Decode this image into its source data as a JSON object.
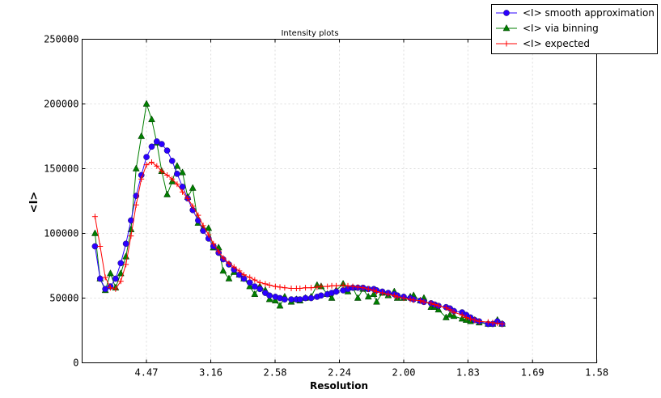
{
  "chart_data": {
    "type": "line",
    "title": "Intensity plots",
    "xlabel": "Resolution",
    "ylabel": "<I>",
    "x_scale": "reciprocal-square (1/d^2)",
    "x_ticks": [
      "4.47",
      "3.16",
      "2.58",
      "2.24",
      "2.00",
      "1.83",
      "1.69",
      "1.58"
    ],
    "x_tick_values": [
      4.472,
      3.162,
      2.582,
      2.236,
      2.0,
      1.826,
      1.69,
      1.581
    ],
    "ylim": [
      0,
      250000
    ],
    "y_ticks": [
      "0",
      "50000",
      "100000",
      "150000",
      "200000",
      "250000"
    ],
    "grid": true,
    "legend_position": "top-right, outside",
    "x": [
      10.0,
      8.45,
      7.45,
      6.74,
      6.2,
      5.77,
      5.42,
      5.13,
      4.88,
      4.66,
      4.47,
      4.3,
      4.15,
      4.02,
      3.89,
      3.78,
      3.68,
      3.58,
      3.49,
      3.41,
      3.33,
      3.26,
      3.19,
      3.13,
      3.07,
      3.02,
      2.96,
      2.91,
      2.86,
      2.82,
      2.77,
      2.73,
      2.69,
      2.65,
      2.62,
      2.58,
      2.55,
      2.52,
      2.48,
      2.45,
      2.43,
      2.4,
      2.37,
      2.34,
      2.32,
      2.29,
      2.27,
      2.25,
      2.22,
      2.2,
      2.18,
      2.16,
      2.14,
      2.12,
      2.1,
      2.09,
      2.07,
      2.05,
      2.03,
      2.02,
      2.0,
      1.98,
      1.97,
      1.95,
      1.94,
      1.92,
      1.91,
      1.9,
      1.88,
      1.87,
      1.86,
      1.84,
      1.83,
      1.82,
      1.81,
      1.8,
      1.78,
      1.77,
      1.76,
      1.75
    ],
    "series": [
      {
        "name": "<I> smooth approximation",
        "color": "#2b00ff",
        "marker": "circle",
        "values": [
          90000,
          65000,
          57000,
          59000,
          65000,
          77000,
          92000,
          110000,
          129000,
          145000,
          159000,
          167000,
          171000,
          169000,
          164000,
          156000,
          146000,
          136000,
          127000,
          118000,
          110000,
          102000,
          96000,
          90000,
          85000,
          80000,
          76000,
          72000,
          68000,
          65000,
          62000,
          59000,
          57000,
          54000,
          52000,
          51000,
          50000,
          49000,
          49000,
          49000,
          49000,
          50000,
          50000,
          51000,
          52000,
          53000,
          54000,
          55000,
          56000,
          57000,
          58000,
          58000,
          58000,
          57000,
          57000,
          56000,
          55000,
          54000,
          53000,
          52000,
          51000,
          50000,
          49000,
          48000,
          47000,
          46000,
          45000,
          44000,
          43000,
          42000,
          40000,
          39000,
          37000,
          35000,
          33000,
          32000,
          30000,
          30000,
          32000,
          30000
        ]
      },
      {
        "name": "<I> via binning",
        "color": "#007f00",
        "marker": "triangle",
        "values": [
          100000,
          65000,
          56000,
          69000,
          58000,
          69000,
          82000,
          103000,
          150000,
          175000,
          200000,
          188000,
          170000,
          148000,
          130000,
          140000,
          152000,
          147000,
          128000,
          135000,
          108000,
          104000,
          104000,
          89000,
          89000,
          71000,
          65000,
          70000,
          68000,
          65000,
          59000,
          53000,
          59000,
          56000,
          49000,
          48000,
          44000,
          51000,
          47000,
          49000,
          48000,
          50000,
          51000,
          60000,
          59000,
          53000,
          50000,
          56000,
          61000,
          55000,
          58000,
          50000,
          57000,
          51000,
          53000,
          47000,
          54000,
          52000,
          55000,
          50000,
          50000,
          51000,
          52000,
          48000,
          50000,
          43000,
          43000,
          41000,
          35000,
          37000,
          36000,
          34000,
          33000,
          32000,
          33000,
          31000,
          30000,
          30000,
          33000,
          30000
        ]
      },
      {
        "name": "<I> expected",
        "color": "#ff0000",
        "marker": "plus",
        "values": [
          113000,
          90000,
          66000,
          58000,
          57000,
          63000,
          76000,
          98000,
          122000,
          142000,
          153000,
          155000,
          152000,
          148000,
          145000,
          142000,
          138000,
          132000,
          127000,
          121000,
          114000,
          106000,
          99000,
          92000,
          86000,
          81000,
          77000,
          74000,
          71000,
          68000,
          66000,
          64000,
          62000,
          61000,
          60000,
          59000,
          58500,
          58000,
          57500,
          57500,
          57500,
          58000,
          58000,
          58500,
          59000,
          59000,
          59500,
          59500,
          60000,
          59500,
          59000,
          58500,
          58000,
          57000,
          56000,
          55000,
          54000,
          53000,
          52000,
          51000,
          50000,
          49000,
          48500,
          48000,
          47000,
          46000,
          45000,
          44000,
          42500,
          41000,
          39000,
          37000,
          35000,
          34000,
          33000,
          32000,
          31500,
          31000,
          30500,
          30000
        ]
      }
    ]
  }
}
